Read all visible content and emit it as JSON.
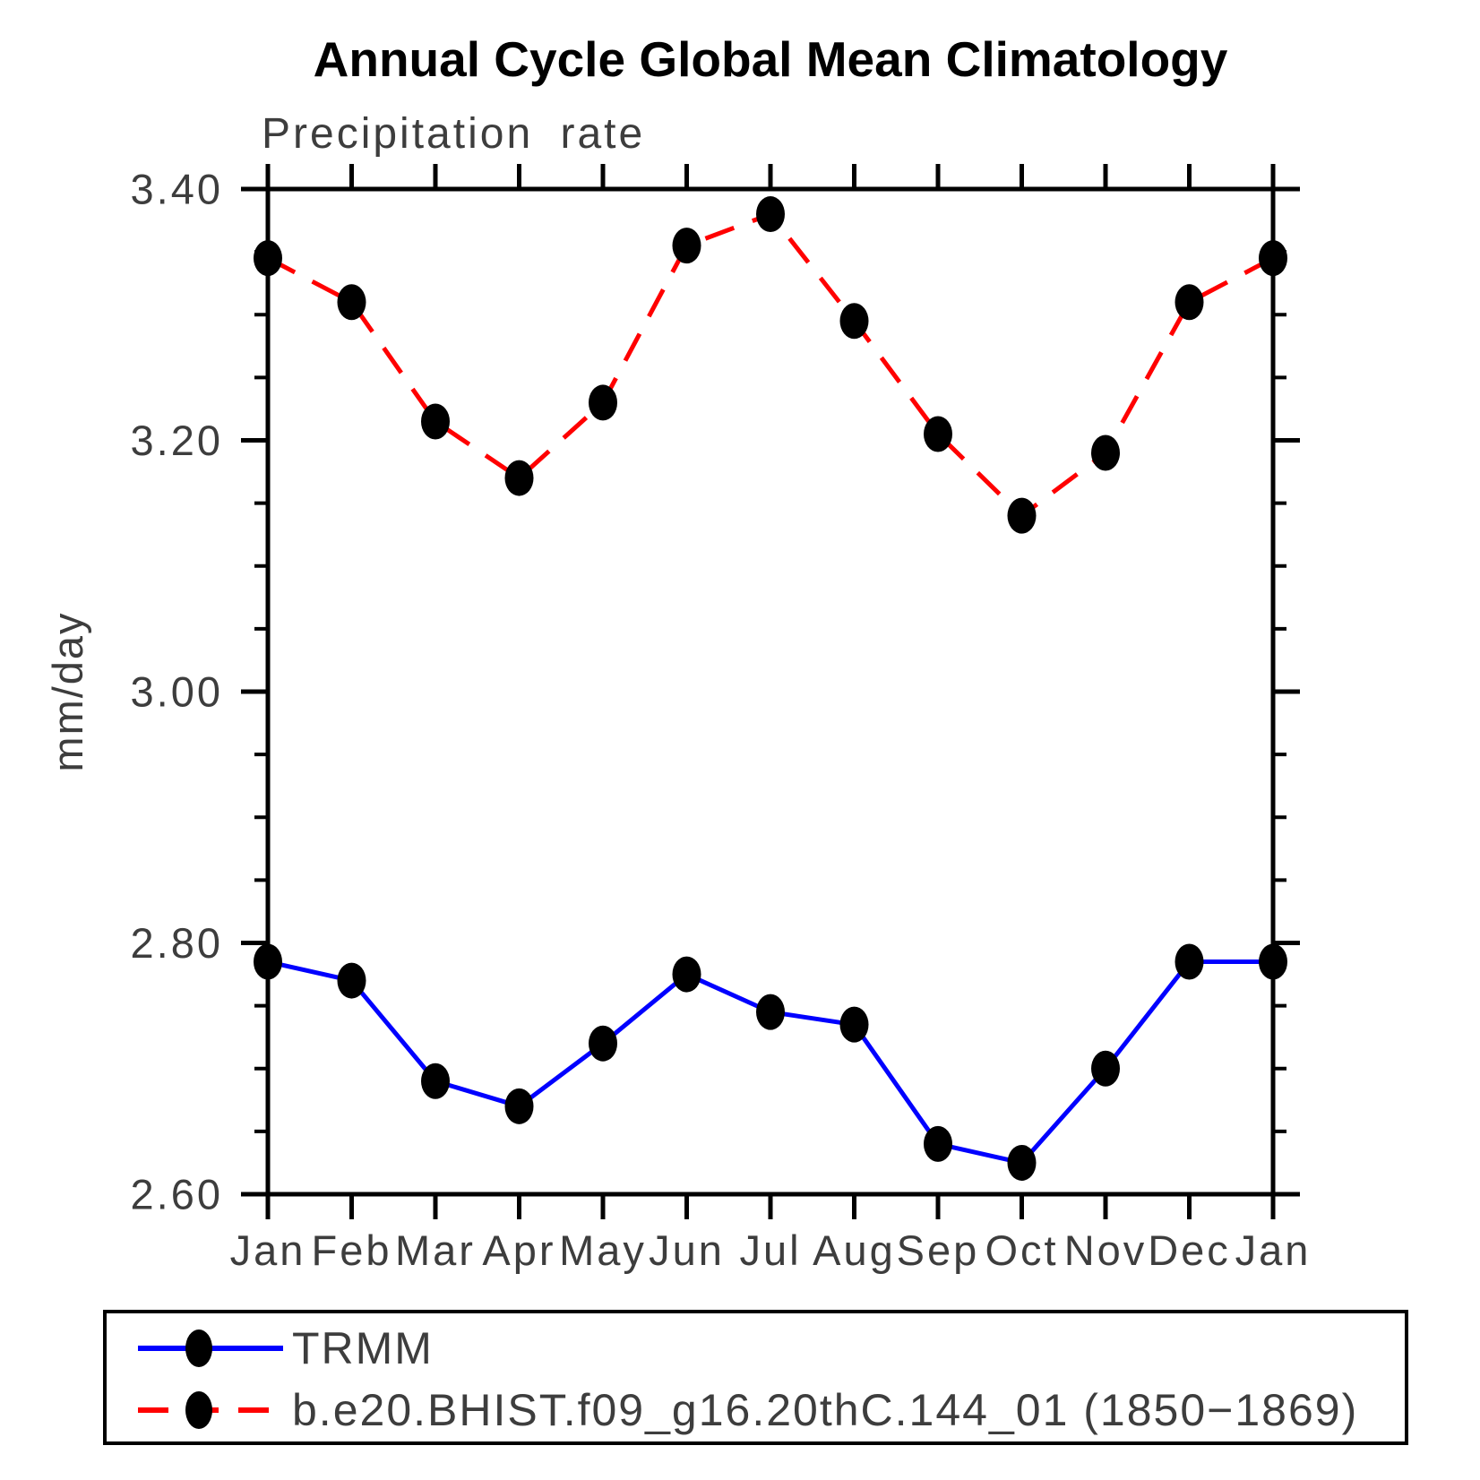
{
  "header": {
    "title": "Annual Cycle Global Mean Climatology",
    "subtitle": "Precipitation rate"
  },
  "chart_data": {
    "type": "line",
    "title": "Annual Cycle Global Mean Climatology",
    "subtitle": "Precipitation rate",
    "ylabel": "mm/day",
    "xlabel": "",
    "x_categories": [
      "Jan",
      "Feb",
      "Mar",
      "Apr",
      "May",
      "Jun",
      "Jul",
      "Aug",
      "Sep",
      "Oct",
      "Nov",
      "Dec",
      "Jan"
    ],
    "y_tick_labels": [
      "2.60",
      "2.80",
      "3.00",
      "3.20",
      "3.40"
    ],
    "y_tick_values": [
      2.6,
      2.8,
      3.0,
      3.2,
      3.4
    ],
    "y_minor_step": 0.05,
    "ylim": [
      2.6,
      3.4
    ],
    "grid": false,
    "legend_position": "bottom-box",
    "axis_color": "#000000",
    "text_color": "#3d3d3d",
    "marker_color": "#000000",
    "series": [
      {
        "name": "TRMM",
        "color": "#0000ff",
        "style": "solid",
        "marker": "filled-black-dot",
        "values": [
          2.785,
          2.77,
          2.69,
          2.67,
          2.72,
          2.775,
          2.745,
          2.735,
          2.64,
          2.625,
          2.7,
          2.785,
          2.785
        ]
      },
      {
        "name": "b.e20.BHIST.f09_g16.20thC.144_01 (1850−1869)",
        "color": "#ff0000",
        "style": "dashed",
        "marker": "filled-black-dot",
        "values": [
          3.345,
          3.31,
          3.215,
          3.17,
          3.23,
          3.355,
          3.38,
          3.295,
          3.205,
          3.14,
          3.19,
          3.31,
          3.345
        ]
      }
    ]
  }
}
